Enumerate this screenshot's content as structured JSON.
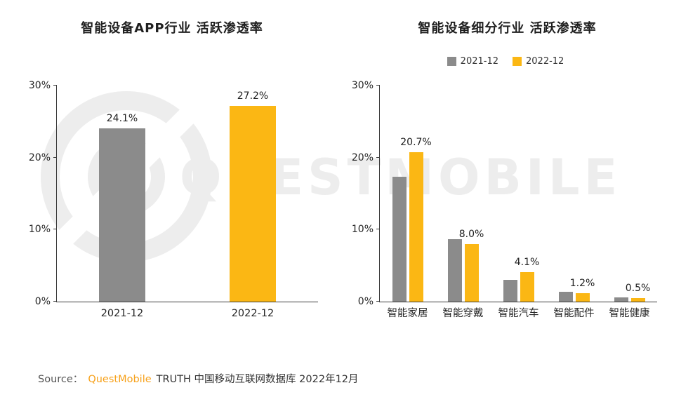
{
  "colors": {
    "bar_gray": "#8b8b8b",
    "bar_yellow": "#fbb714",
    "brand_orange": "#f7a11a",
    "watermark_gray": "#ededed",
    "axis": "#3a3a3a"
  },
  "watermark": {
    "text": "QUESTMOBILE"
  },
  "chart_data": [
    {
      "type": "bar",
      "title": "智能设备APP行业 活跃渗透率",
      "categories": [
        "2021-12",
        "2022-12"
      ],
      "values": [
        24.1,
        27.2
      ],
      "value_labels": [
        "24.1%",
        "27.2%"
      ],
      "bar_colors": [
        "#8b8b8b",
        "#fbb714"
      ],
      "xlabel": "",
      "ylabel": "",
      "ylim": [
        0,
        30
      ],
      "yticks": [
        0,
        10,
        20,
        30
      ],
      "ytick_labels": [
        "0%",
        "10%",
        "20%",
        "30%"
      ],
      "grid": false,
      "legend_position": "none"
    },
    {
      "type": "bar",
      "title": "智能设备细分行业 活跃渗透率",
      "categories": [
        "智能家居",
        "智能穿戴",
        "智能汽车",
        "智能配件",
        "智能健康"
      ],
      "series": [
        {
          "name": "2021-12",
          "color": "#8b8b8b",
          "values": [
            17.3,
            8.7,
            3.0,
            1.4,
            0.6
          ]
        },
        {
          "name": "2022-12",
          "color": "#fbb714",
          "values": [
            20.7,
            8.0,
            4.1,
            1.2,
            0.5
          ],
          "labels": [
            "20.7%",
            "8.0%",
            "4.1%",
            "1.2%",
            "0.5%"
          ]
        }
      ],
      "xlabel": "",
      "ylabel": "",
      "ylim": [
        0,
        30
      ],
      "yticks": [
        0,
        10,
        20,
        30
      ],
      "ytick_labels": [
        "0%",
        "10%",
        "20%",
        "30%"
      ],
      "grid": false,
      "legend_position": "top"
    }
  ],
  "footer": {
    "source_label": "Source：",
    "brand": "QuestMobile",
    "text": "TRUTH 中国移动互联网数据库 2022年12月"
  }
}
